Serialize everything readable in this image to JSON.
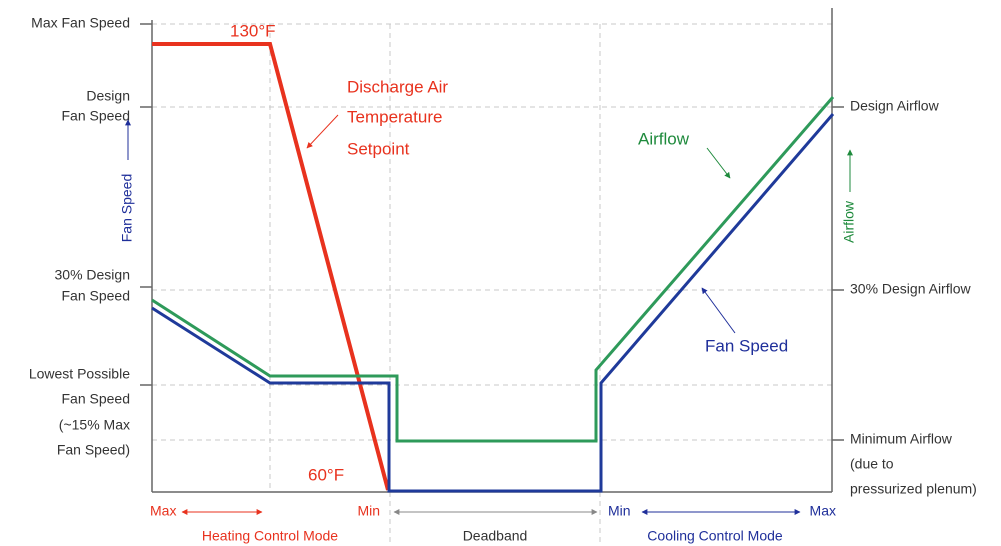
{
  "left_axis": {
    "title": "Fan Speed",
    "labels": [
      [
        "Max Fan Speed"
      ],
      [
        "Design",
        "Fan Speed"
      ],
      [
        "30% Design",
        "Fan Speed"
      ],
      [
        "Lowest Possible",
        "Fan Speed",
        "(~15% Max",
        "Fan Speed)"
      ]
    ]
  },
  "right_axis": {
    "title": "Airflow",
    "labels": [
      [
        "Design Airflow"
      ],
      [
        "30% Design Airflow"
      ],
      [
        "Minimum Airflow",
        "(due to",
        "pressurized plenum)"
      ]
    ]
  },
  "annotations": {
    "high_temp": "130°F",
    "low_temp": "60°F",
    "setpoint": [
      "Discharge Air",
      "Temperature",
      "Setpoint"
    ],
    "airflow": "Airflow",
    "fan_speed": "Fan Speed"
  },
  "bottom": {
    "heating": {
      "left": "Max",
      "right": "Min",
      "label": "Heating Control Mode"
    },
    "deadband": "Deadband",
    "cooling": {
      "left": "Min",
      "right": "Max",
      "label": "Cooling Control Mode"
    }
  }
}
